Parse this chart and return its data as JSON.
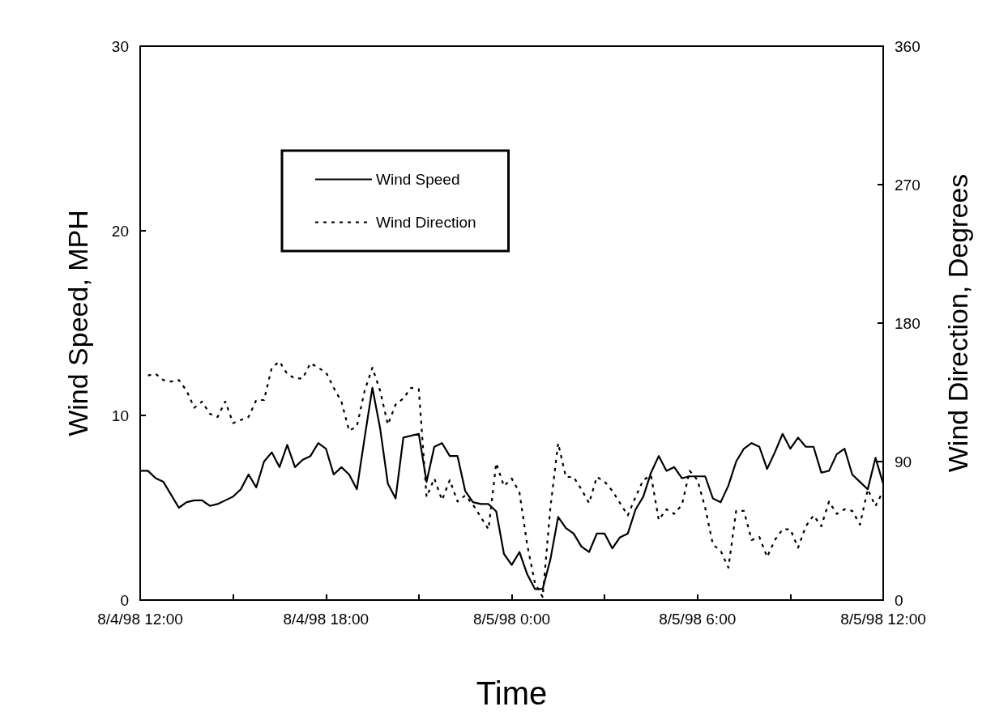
{
  "chart_data": {
    "type": "line",
    "xlabel": "Time",
    "ylabel": "Wind Speed, MPH",
    "y2label": "Wind Direction, Degrees",
    "legend": "top left",
    "xlim": [
      "1998-08-04T12:00",
      "1998-08-05T12:00"
    ],
    "xticks": [
      {
        "value": "1998-08-04T12:00",
        "label": "8/4/98 12:00"
      },
      {
        "value": "1998-08-04T15:00",
        "label": null
      },
      {
        "value": "1998-08-04T18:00",
        "label": "8/4/98 18:00"
      },
      {
        "value": "1998-08-04T21:00",
        "label": null
      },
      {
        "value": "1998-08-05T00:00",
        "label": "8/5/98 0:00"
      },
      {
        "value": "1998-08-05T03:00",
        "label": null
      },
      {
        "value": "1998-08-05T06:00",
        "label": "8/5/98 6:00"
      },
      {
        "value": "1998-08-05T09:00",
        "label": null
      },
      {
        "value": "1998-08-05T12:00",
        "label": "8/5/98 12:00"
      }
    ],
    "ylim": [
      0,
      30
    ],
    "yticks": [
      0,
      10,
      20,
      30
    ],
    "y2lim": [
      0,
      360
    ],
    "y2ticks": [
      0,
      90,
      180,
      270,
      360
    ],
    "series": [
      {
        "name": "Wind Speed",
        "color": "#000000",
        "line_style": "solid",
        "x": [
          "1998-08-04T12:00",
          "1998-08-04T12:15",
          "1998-08-04T12:30",
          "1998-08-04T12:45",
          "1998-08-04T13:15",
          "1998-08-04T13:30",
          "1998-08-04T13:45",
          "1998-08-04T14:00",
          "1998-08-04T14:15",
          "1998-08-04T14:30",
          "1998-08-04T14:45",
          "1998-08-04T15:00",
          "1998-08-04T15:15",
          "1998-08-04T15:30",
          "1998-08-04T15:45",
          "1998-08-04T16:00",
          "1998-08-04T16:15",
          "1998-08-04T16:30",
          "1998-08-04T16:45",
          "1998-08-04T17:00",
          "1998-08-04T17:15",
          "1998-08-04T17:30",
          "1998-08-04T17:45",
          "1998-08-04T18:00",
          "1998-08-04T18:15",
          "1998-08-04T18:30",
          "1998-08-04T18:45",
          "1998-08-04T19:00",
          "1998-08-04T19:15",
          "1998-08-04T19:30",
          "1998-08-04T19:45",
          "1998-08-04T20:00",
          "1998-08-04T20:15",
          "1998-08-04T20:30",
          "1998-08-04T21:00",
          "1998-08-04T21:15",
          "1998-08-04T21:30",
          "1998-08-04T21:45",
          "1998-08-04T22:00",
          "1998-08-04T22:15",
          "1998-08-04T22:30",
          "1998-08-04T22:45",
          "1998-08-04T23:00",
          "1998-08-04T23:15",
          "1998-08-04T23:30",
          "1998-08-04T23:45",
          "1998-08-05T00:00",
          "1998-08-05T00:15",
          "1998-08-05T00:30",
          "1998-08-05T00:45",
          "1998-08-05T01:00",
          "1998-08-05T01:15",
          "1998-08-05T01:30",
          "1998-08-05T01:45",
          "1998-08-05T02:00",
          "1998-08-05T02:15",
          "1998-08-05T02:30",
          "1998-08-05T02:45",
          "1998-08-05T03:00",
          "1998-08-05T03:15",
          "1998-08-05T03:30",
          "1998-08-05T03:45",
          "1998-08-05T04:00",
          "1998-08-05T04:15",
          "1998-08-05T04:30",
          "1998-08-05T04:45",
          "1998-08-05T05:00",
          "1998-08-05T05:15",
          "1998-08-05T05:30",
          "1998-08-05T05:45",
          "1998-08-05T06:00",
          "1998-08-05T06:15",
          "1998-08-05T06:30",
          "1998-08-05T06:45",
          "1998-08-05T07:00",
          "1998-08-05T07:15",
          "1998-08-05T07:30",
          "1998-08-05T07:45",
          "1998-08-05T08:00",
          "1998-08-05T08:15",
          "1998-08-05T08:30",
          "1998-08-05T08:45",
          "1998-08-05T09:00",
          "1998-08-05T09:15",
          "1998-08-05T09:30",
          "1998-08-05T09:45",
          "1998-08-05T10:00",
          "1998-08-05T10:15",
          "1998-08-05T10:30",
          "1998-08-05T10:45",
          "1998-08-05T11:00",
          "1998-08-05T11:15",
          "1998-08-05T11:30",
          "1998-08-05T11:45",
          "1998-08-05T12:00"
        ],
        "values": [
          7.0,
          7.0,
          6.6,
          6.4,
          5.0,
          5.3,
          5.4,
          5.4,
          5.1,
          5.2,
          5.4,
          5.6,
          6.0,
          6.8,
          6.1,
          7.5,
          8.0,
          7.2,
          8.4,
          7.2,
          7.6,
          7.8,
          8.5,
          8.2,
          6.8,
          7.2,
          6.8,
          6.0,
          8.8,
          11.5,
          9.3,
          6.3,
          5.5,
          8.8,
          9.0,
          6.4,
          8.3,
          8.5,
          7.8,
          7.8,
          5.9,
          5.3,
          5.2,
          5.2,
          4.8,
          2.5,
          1.9,
          2.6,
          1.4,
          0.6,
          0.6,
          2.2,
          4.5,
          3.9,
          3.6,
          2.9,
          2.6,
          3.6,
          3.6,
          2.8,
          3.4,
          3.6,
          4.9,
          5.6,
          6.9,
          7.8,
          7.0,
          7.2,
          6.6,
          6.7,
          6.7,
          6.7,
          5.5,
          5.3,
          6.2,
          7.5,
          8.2,
          8.5,
          8.3,
          7.1,
          8.0,
          9.0,
          8.2,
          8.8,
          8.3,
          8.3,
          6.9,
          7.0,
          7.9,
          8.2,
          6.8,
          6.4,
          6.0,
          7.7,
          6.3
        ]
      },
      {
        "name": "Wind Direction",
        "color": "#000000",
        "line_style": "dashed",
        "axis": "y2",
        "x": [
          "1998-08-04T12:15",
          "1998-08-04T12:30",
          "1998-08-04T12:45",
          "1998-08-04T13:00",
          "1998-08-04T13:15",
          "1998-08-04T13:30",
          "1998-08-04T13:45",
          "1998-08-04T14:00",
          "1998-08-04T14:15",
          "1998-08-04T14:30",
          "1998-08-04T14:45",
          "1998-08-04T15:00",
          "1998-08-04T15:15",
          "1998-08-04T15:30",
          "1998-08-04T15:45",
          "1998-08-04T16:00",
          "1998-08-04T16:15",
          "1998-08-04T16:30",
          "1998-08-04T16:45",
          "1998-08-04T17:00",
          "1998-08-04T17:15",
          "1998-08-04T17:30",
          "1998-08-04T17:45",
          "1998-08-04T18:00",
          "1998-08-04T18:15",
          "1998-08-04T18:30",
          "1998-08-04T18:45",
          "1998-08-04T19:00",
          "1998-08-04T19:15",
          "1998-08-04T19:30",
          "1998-08-04T19:45",
          "1998-08-04T20:00",
          "1998-08-04T20:15",
          "1998-08-04T20:30",
          "1998-08-04T20:45",
          "1998-08-04T21:00",
          "1998-08-04T21:15",
          "1998-08-04T21:30",
          "1998-08-04T21:45",
          "1998-08-04T22:00",
          "1998-08-04T22:15",
          "1998-08-04T22:30",
          "1998-08-04T22:45",
          "1998-08-04T23:00",
          "1998-08-04T23:15",
          "1998-08-04T23:30",
          "1998-08-04T23:45",
          "1998-08-05T00:00",
          "1998-08-05T00:15",
          "1998-08-05T00:30",
          "1998-08-05T00:45",
          "1998-08-05T01:00",
          "1998-08-05T01:15",
          "1998-08-05T01:30",
          "1998-08-05T01:45",
          "1998-08-05T02:00",
          "1998-08-05T02:15",
          "1998-08-05T02:30",
          "1998-08-05T02:45",
          "1998-08-05T03:00",
          "1998-08-05T03:15",
          "1998-08-05T03:30",
          "1998-08-05T03:45",
          "1998-08-05T04:00",
          "1998-08-05T04:15",
          "1998-08-05T04:30",
          "1998-08-05T04:45",
          "1998-08-05T05:00",
          "1998-08-05T05:15",
          "1998-08-05T05:30",
          "1998-08-05T05:45",
          "1998-08-05T06:00",
          "1998-08-05T06:15",
          "1998-08-05T06:30",
          "1998-08-05T06:45",
          "1998-08-05T07:00",
          "1998-08-05T07:15",
          "1998-08-05T07:30",
          "1998-08-05T07:45",
          "1998-08-05T08:00",
          "1998-08-05T08:15",
          "1998-08-05T08:30",
          "1998-08-05T08:45",
          "1998-08-05T09:00",
          "1998-08-05T09:15",
          "1998-08-05T09:30",
          "1998-08-05T09:45",
          "1998-08-05T10:00",
          "1998-08-05T10:15",
          "1998-08-05T10:30",
          "1998-08-05T10:45",
          "1998-08-05T11:00",
          "1998-08-05T11:15",
          "1998-08-05T11:30",
          "1998-08-05T11:45",
          "1998-08-05T12:00"
        ],
        "values": [
          146,
          147,
          143,
          142,
          143,
          136,
          125,
          129,
          121,
          119,
          129,
          115,
          117,
          119,
          130,
          130,
          151,
          155,
          147,
          144,
          144,
          154,
          151,
          148,
          138,
          129,
          110,
          113,
          136,
          151,
          136,
          114,
          127,
          131,
          138,
          137,
          67,
          79,
          65,
          78,
          64,
          68,
          62,
          54,
          46,
          89,
          74,
          79,
          70,
          36,
          11,
          2,
          60,
          102,
          80,
          80,
          72,
          63,
          80,
          77,
          71,
          63,
          55,
          67,
          78,
          81,
          52,
          59,
          56,
          62,
          84,
          78,
          60,
          36,
          32,
          21,
          58,
          58,
          39,
          41,
          28,
          39,
          46,
          46,
          34,
          48,
          55,
          48,
          64,
          56,
          59,
          58,
          49,
          72,
          61,
          71
        ]
      }
    ]
  }
}
